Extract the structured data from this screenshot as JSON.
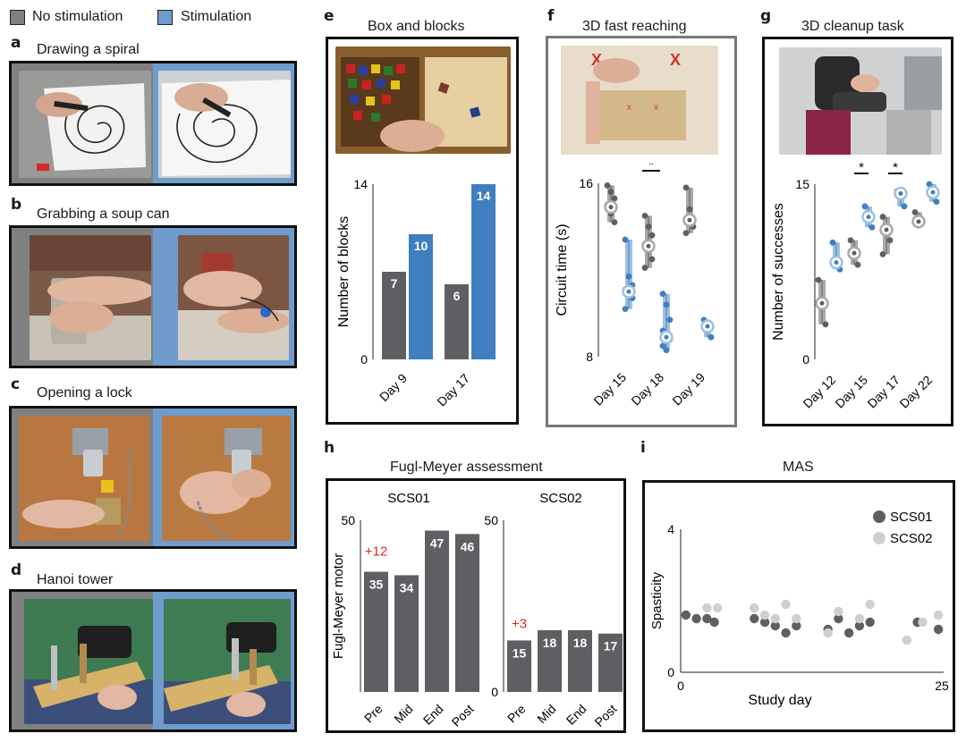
{
  "legend": {
    "no_stim": "No stimulation",
    "stim": "Stimulation",
    "no_color": "#808080",
    "stim_color": "#6f9ccd"
  },
  "colors": {
    "grey": "#5f5f63",
    "blue": "#3f7fbf",
    "light_grey": "#cfcfcf",
    "red": "#e0282e"
  },
  "panels": {
    "a": {
      "letter": "a",
      "title": "Drawing a spiral"
    },
    "b": {
      "letter": "b",
      "title": "Grabbing a soup can"
    },
    "c": {
      "letter": "c",
      "title": "Opening a lock"
    },
    "d": {
      "letter": "d",
      "title": "Hanoi tower"
    },
    "e": {
      "letter": "e",
      "title": "Box and blocks"
    },
    "f": {
      "letter": "f",
      "title": "3D fast reaching"
    },
    "g": {
      "letter": "g",
      "title": "3D cleanup task"
    },
    "h": {
      "letter": "h",
      "title": "Fugl-Meyer assessment"
    },
    "i": {
      "letter": "i",
      "title": "MAS"
    }
  },
  "chart_data": [
    {
      "id": "e",
      "type": "bar",
      "title": "Box and blocks",
      "ylabel": "Number of blocks",
      "ylim": [
        0,
        14
      ],
      "yticks": [
        "0",
        "14"
      ],
      "categories": [
        "Day 9",
        "Day 17"
      ],
      "series": [
        {
          "name": "No stimulation",
          "values": [
            7,
            6
          ],
          "labels": [
            "7",
            "6"
          ]
        },
        {
          "name": "Stimulation",
          "values": [
            10,
            14
          ],
          "labels": [
            "10",
            "14"
          ]
        }
      ]
    },
    {
      "id": "f",
      "type": "scatter",
      "title": "3D fast reaching",
      "ylabel": "Circuit time (s)",
      "ylim": [
        8,
        16
      ],
      "yticks": [
        "16",
        "8"
      ],
      "categories": [
        "Day 15",
        "Day 18",
        "Day 19"
      ],
      "significance": "*",
      "series": [
        {
          "name": "No stimulation",
          "points": [
            [
              0,
              15.9
            ],
            [
              0,
              15.6
            ],
            [
              0,
              15.3
            ],
            [
              0,
              15.0
            ],
            [
              0,
              14.6
            ],
            [
              0,
              14.2
            ],
            [
              1,
              14.5
            ],
            [
              1,
              14.0
            ],
            [
              1,
              13.6
            ],
            [
              1,
              13.2
            ],
            [
              1,
              12.9
            ],
            [
              1,
              12.5
            ],
            [
              1,
              12.1
            ],
            [
              2,
              15.8
            ],
            [
              2,
              14.8
            ],
            [
              2,
              14.0
            ],
            [
              2,
              13.7
            ]
          ],
          "medians": [
            14.9,
            13.1,
            14.3
          ]
        },
        {
          "name": "Stimulation",
          "points": [
            [
              0,
              13.4
            ],
            [
              0,
              11.7
            ],
            [
              0,
              11.3
            ],
            [
              0,
              11.1
            ],
            [
              0,
              10.9
            ],
            [
              0,
              10.7
            ],
            [
              0,
              10.2
            ],
            [
              1,
              10.9
            ],
            [
              1,
              10.4
            ],
            [
              1,
              9.7
            ],
            [
              1,
              9.2
            ],
            [
              1,
              9.0
            ],
            [
              1,
              8.8
            ],
            [
              1,
              8.5
            ],
            [
              1,
              8.3
            ],
            [
              2,
              9.7
            ],
            [
              2,
              9.4
            ],
            [
              2,
              8.9
            ]
          ],
          "medians": [
            11.0,
            8.9,
            9.4
          ]
        }
      ]
    },
    {
      "id": "g",
      "type": "scatter",
      "title": "3D cleanup task",
      "ylabel": "Number of successes",
      "ylim": [
        0,
        15
      ],
      "yticks": [
        "15",
        "0"
      ],
      "categories": [
        "Day 12",
        "Day 15",
        "Day 17",
        "Day 22"
      ],
      "significance": [
        "*",
        "*"
      ],
      "series": [
        {
          "name": "No stimulation",
          "points": [
            [
              0,
              6.8
            ],
            [
              0,
              5.0
            ],
            [
              0,
              3.0
            ],
            [
              1,
              10.2
            ],
            [
              1,
              9.1
            ],
            [
              1,
              8.1
            ],
            [
              2,
              12.2
            ],
            [
              2,
              11.2
            ],
            [
              2,
              10.2
            ],
            [
              2,
              9.0
            ],
            [
              3,
              12.6
            ],
            [
              3,
              11.5
            ]
          ],
          "medians": [
            4.8,
            9.1,
            11.1,
            11.8
          ]
        },
        {
          "name": "Stimulation",
          "points": [
            [
              0,
              10.0
            ],
            [
              0,
              8.4
            ],
            [
              0,
              7.7
            ],
            [
              1,
              13.1
            ],
            [
              1,
              12.2
            ],
            [
              1,
              11.3
            ],
            [
              2,
              14.4
            ],
            [
              2,
              14.4
            ],
            [
              2,
              13.1
            ],
            [
              3,
              15.0
            ],
            [
              3,
              14.2
            ],
            [
              3,
              13.5
            ]
          ],
          "medians": [
            8.3,
            12.2,
            14.2,
            14.3
          ]
        }
      ]
    },
    {
      "id": "h1",
      "type": "bar",
      "title": "SCS01",
      "ylabel": "Fugl-Meyer motor",
      "ylim": [
        0,
        50
      ],
      "yticks": [
        "50"
      ],
      "categories": [
        "Pre",
        "Mid",
        "End",
        "Post"
      ],
      "values": [
        35,
        34,
        47,
        46
      ],
      "labels": [
        "35",
        "34",
        "47",
        "46"
      ],
      "annotation": "+12"
    },
    {
      "id": "h2",
      "type": "bar",
      "title": "SCS02",
      "ylim": [
        0,
        50
      ],
      "yticks": [
        "50",
        "0"
      ],
      "categories": [
        "Pre",
        "Mid",
        "End",
        "Post"
      ],
      "values": [
        15,
        18,
        18,
        17
      ],
      "labels": [
        "15",
        "18",
        "18",
        "17"
      ],
      "annotation": "+3"
    },
    {
      "id": "i",
      "type": "scatter",
      "title": "MAS",
      "xlabel": "Study day",
      "ylabel": "Spasticity",
      "xlim": [
        0,
        25
      ],
      "ylim": [
        0,
        4
      ],
      "xticks": [
        "0",
        "25"
      ],
      "yticks": [
        "4",
        "0"
      ],
      "series": [
        {
          "name": "SCS01",
          "points": [
            [
              0.5,
              1.6
            ],
            [
              1.5,
              1.5
            ],
            [
              2.5,
              1.5
            ],
            [
              3.2,
              1.4
            ],
            [
              7.0,
              1.5
            ],
            [
              8.0,
              1.4
            ],
            [
              9.0,
              1.3
            ],
            [
              10.0,
              1.1
            ],
            [
              11.0,
              1.3
            ],
            [
              14.0,
              1.2
            ],
            [
              15.0,
              1.5
            ],
            [
              16.0,
              1.1
            ],
            [
              17.0,
              1.3
            ],
            [
              18.0,
              1.4
            ],
            [
              22.5,
              1.4
            ],
            [
              24.5,
              1.2
            ]
          ]
        },
        {
          "name": "SCS02",
          "points": [
            [
              2.5,
              1.8
            ],
            [
              3.5,
              1.8
            ],
            [
              7.0,
              1.8
            ],
            [
              8.0,
              1.6
            ],
            [
              9.0,
              1.5
            ],
            [
              10.0,
              1.9
            ],
            [
              11.0,
              1.5
            ],
            [
              14.0,
              1.1
            ],
            [
              15.0,
              1.7
            ],
            [
              17.0,
              1.5
            ],
            [
              18.0,
              1.9
            ],
            [
              21.5,
              0.9
            ],
            [
              23.0,
              1.4
            ],
            [
              24.5,
              1.6
            ]
          ]
        }
      ]
    }
  ]
}
